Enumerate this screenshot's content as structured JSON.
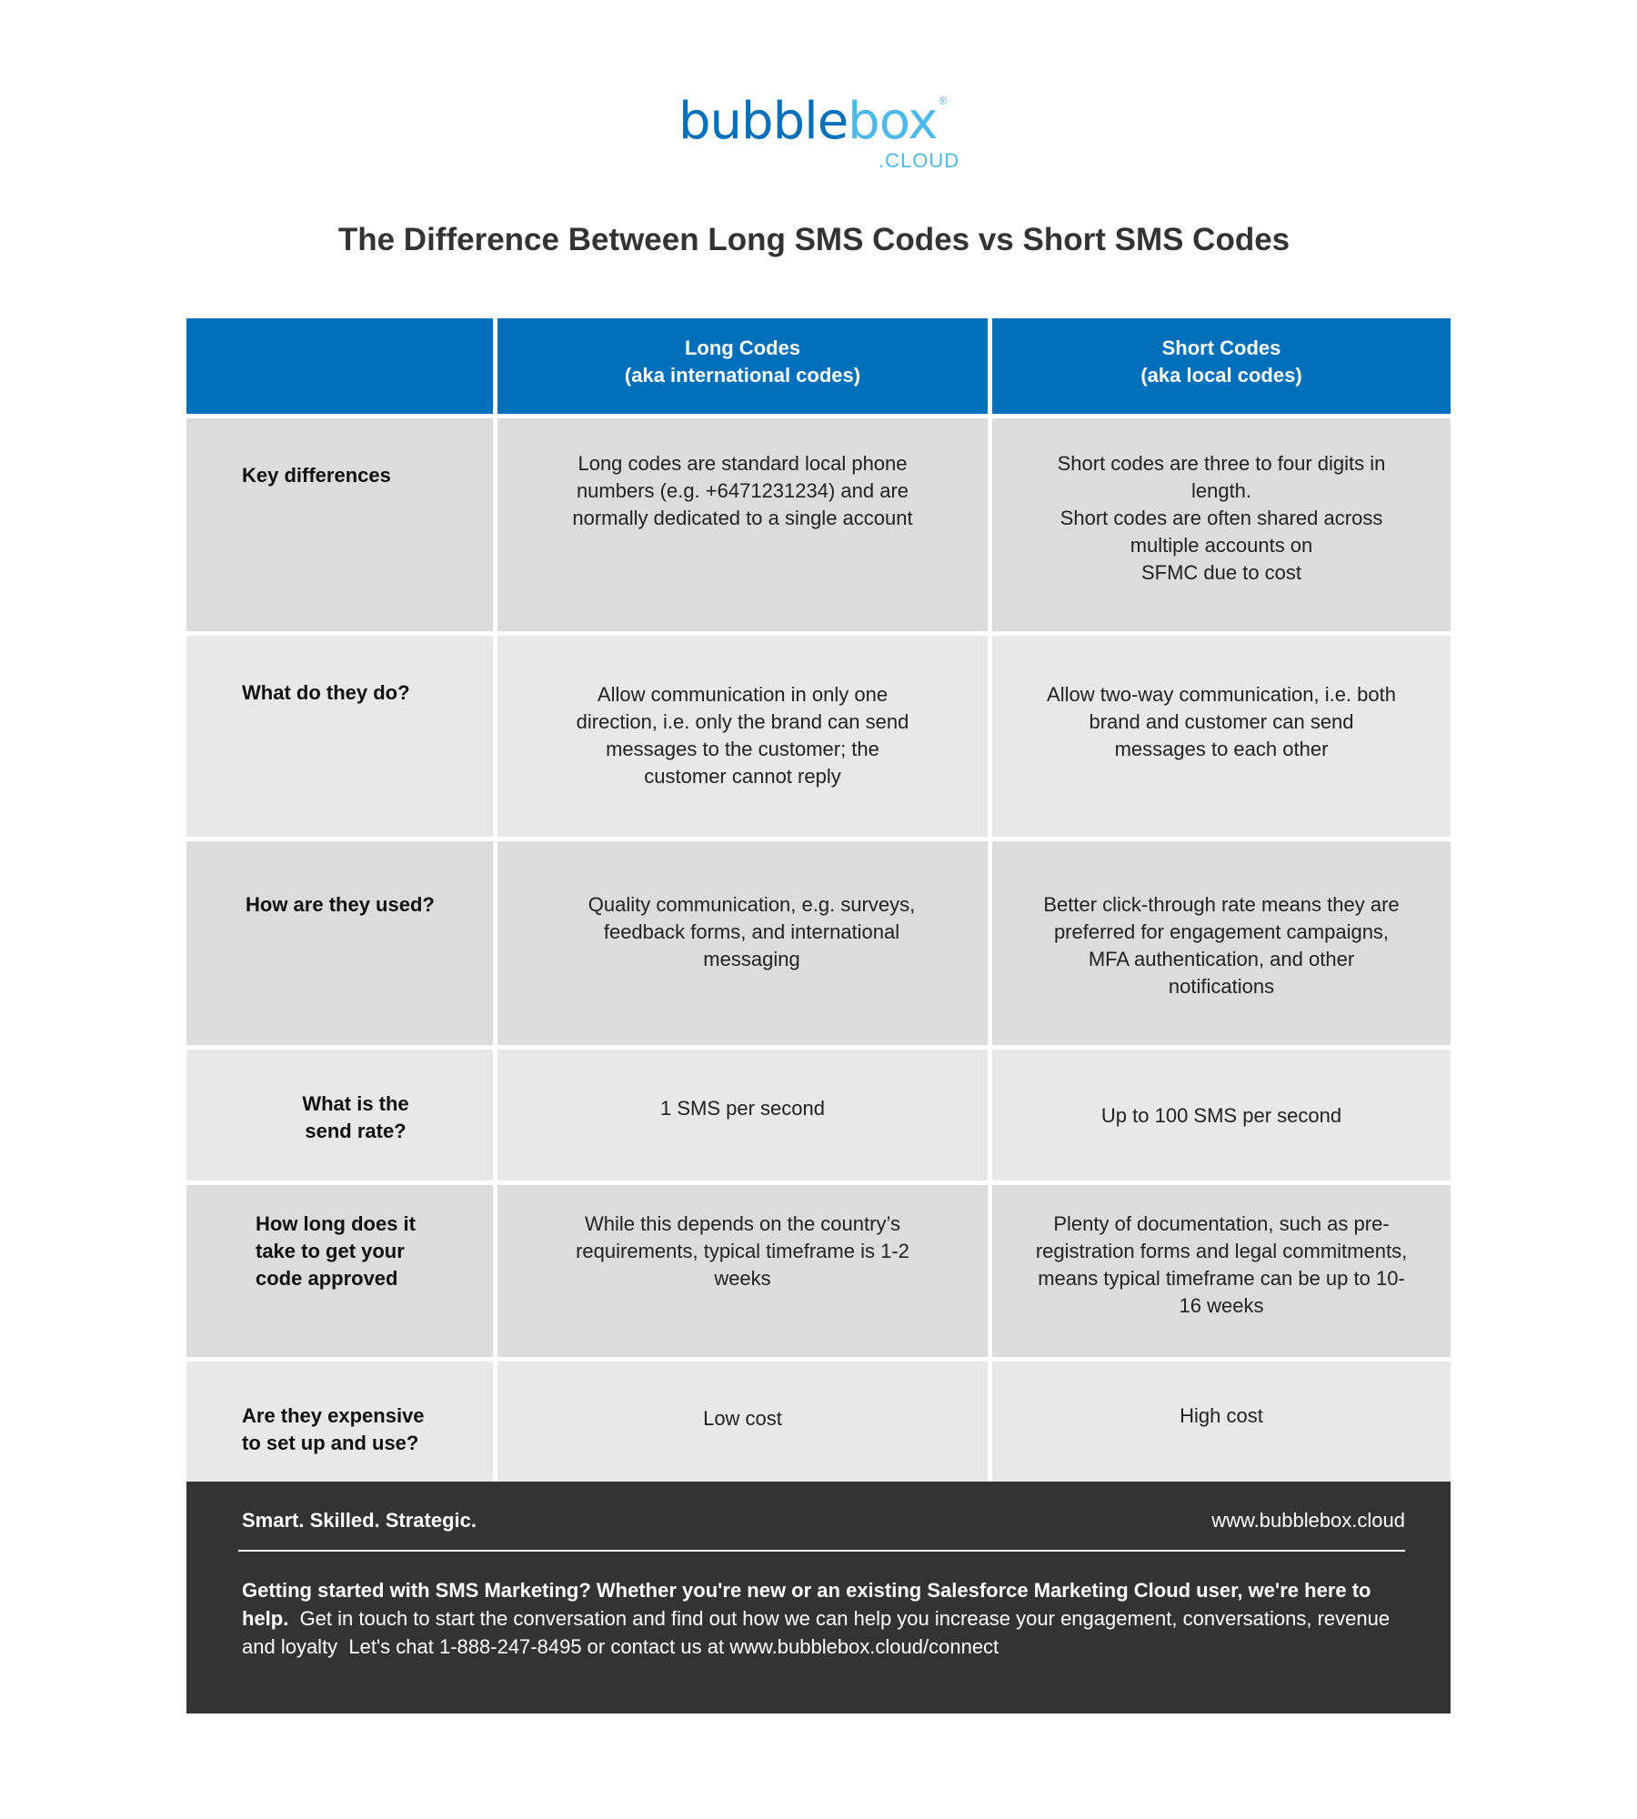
{
  "brand": {
    "part1": "bubble",
    "part2": "box",
    "suffix": ".CLOUD",
    "reg": "®",
    "colors": {
      "dark": "#0070ba",
      "light": "#4db8ea"
    }
  },
  "title": "The Difference Between Long SMS Codes vs Short SMS Codes",
  "table": {
    "headers": [
      "",
      "Long Codes\n(aka international codes)",
      "Short Codes\n(aka local codes)"
    ],
    "rows": [
      {
        "label": "Key differences",
        "long": "Long codes are standard local phone numbers (e.g. +6471231234) and are normally dedicated to a single account",
        "short": "Short codes are three to four digits in length.\nShort codes are often shared across multiple accounts on\nSFMC due to cost"
      },
      {
        "label": "What do they do?",
        "long": "Allow communication in only one direction, i.e. only the brand can send messages to the customer; the customer cannot reply",
        "short": "Allow two-way communication, i.e. both brand and customer can send messages to each other"
      },
      {
        "label": "How are they used?",
        "long": "Quality communication, e.g. surveys, feedback forms, and international messaging",
        "short": "Better click-through rate means they are preferred for engagement campaigns, MFA authentication, and other notifications"
      },
      {
        "label": "What is the\nsend rate?",
        "long": "1 SMS per second",
        "short": "Up to 100 SMS per second"
      },
      {
        "label": "How long does it take to get your code approved",
        "long": "While this depends on the country’s requirements, typical timeframe is 1-2 weeks",
        "short": "Plenty of documentation, such as pre-registration forms and legal commitments, means typical timeframe can be up to 10-16 weeks"
      },
      {
        "label": "Are they expensive to set up and use?",
        "long": "Low cost",
        "short": "High cost"
      }
    ]
  },
  "footer": {
    "tagline": "Smart. Skilled. Strategic.",
    "url": "www.bubblebox.cloud",
    "bold": "Getting started with SMS Marketing?  Whether you're new or an existing Salesforce Marketing Cloud user, we're here to help.",
    "text": "  Get in touch to start the conversation and find out how we can help you increase your engagement, conversations, revenue and loyalty  Let's chat 1-888-247-8495 or contact us at www.bubblebox.cloud/connect"
  }
}
